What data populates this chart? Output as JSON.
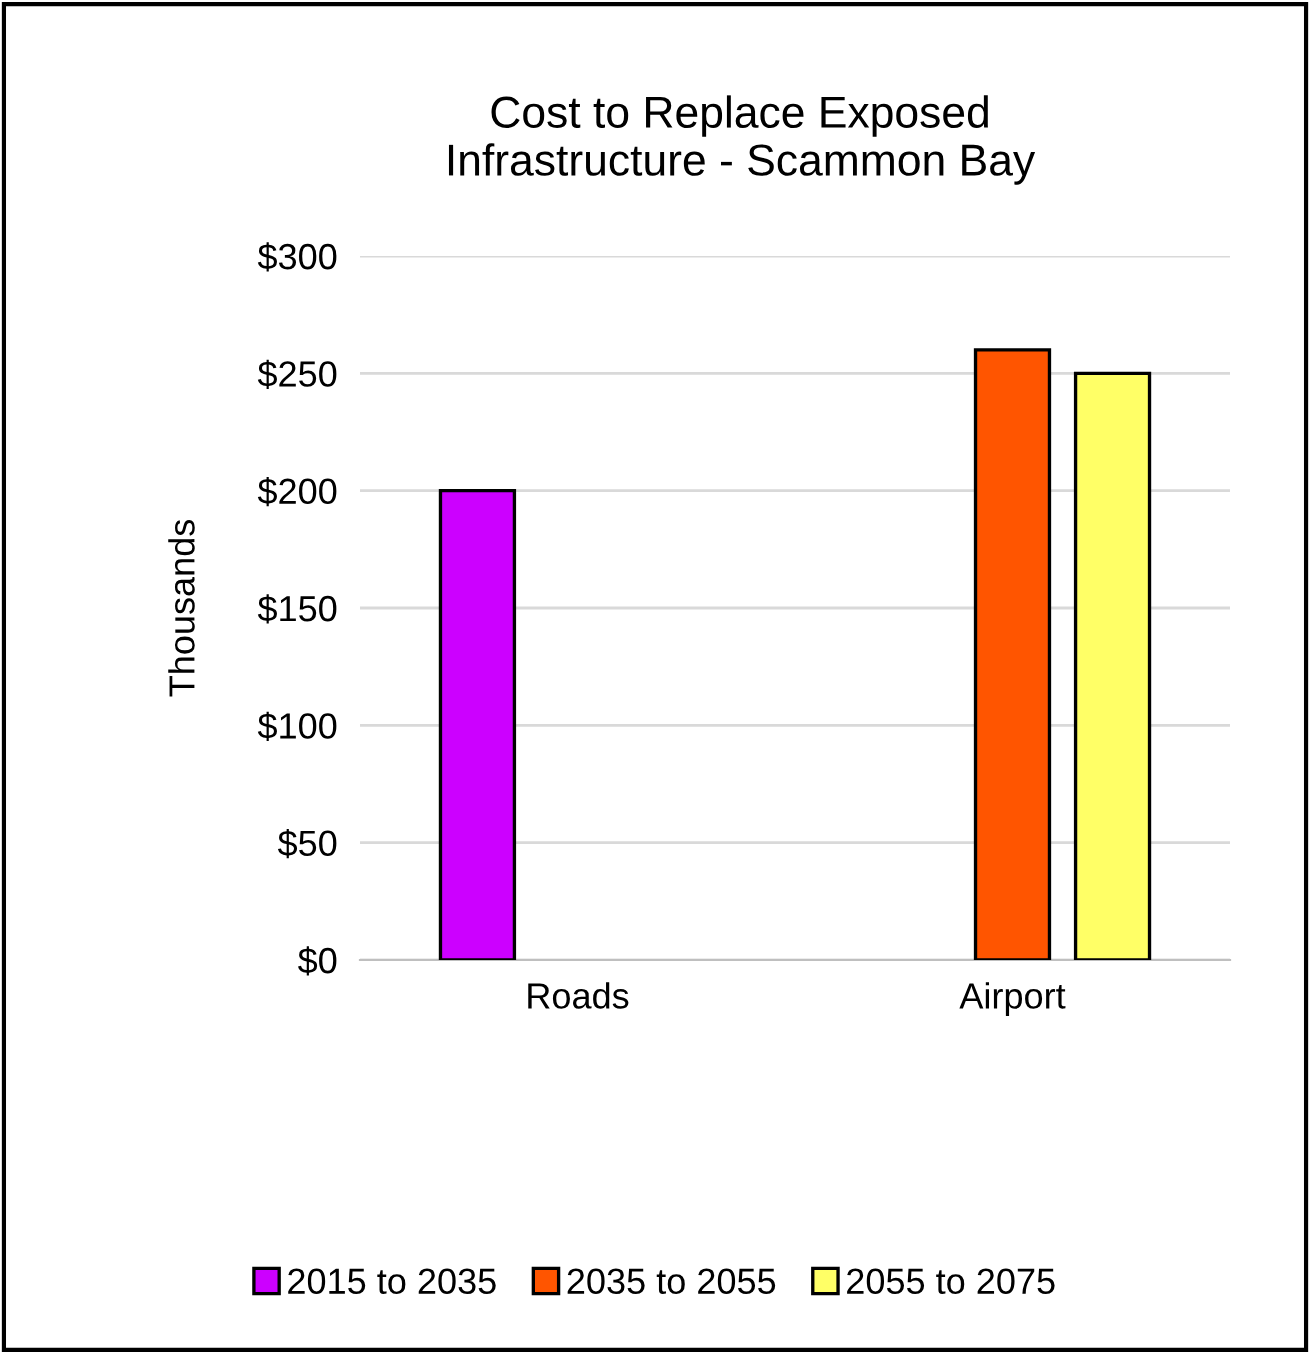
{
  "chart_data": {
    "type": "bar",
    "title": "Cost to Replace Exposed\nInfrastructure - Scammon Bay",
    "ylabel": "Thousands",
    "categories": [
      "Roads",
      "Airport"
    ],
    "series": [
      {
        "name": "2015 to 2035",
        "color": "#cc00ff",
        "values": [
          200,
          null
        ]
      },
      {
        "name": "2035 to 2055",
        "color": "#ff5500",
        "values": [
          null,
          260
        ]
      },
      {
        "name": "2055 to 2075",
        "color": "#ffff66",
        "values": [
          null,
          250
        ]
      }
    ],
    "ylim": [
      0,
      300
    ],
    "yticks": [
      {
        "value": 0,
        "label": "$0"
      },
      {
        "value": 50,
        "label": "$50"
      },
      {
        "value": 100,
        "label": "$100"
      },
      {
        "value": 150,
        "label": "$150"
      },
      {
        "value": 200,
        "label": "$200"
      },
      {
        "value": 250,
        "label": "$250"
      },
      {
        "value": 300,
        "label": "$300"
      }
    ],
    "grid": "y",
    "legend": "bottom"
  }
}
